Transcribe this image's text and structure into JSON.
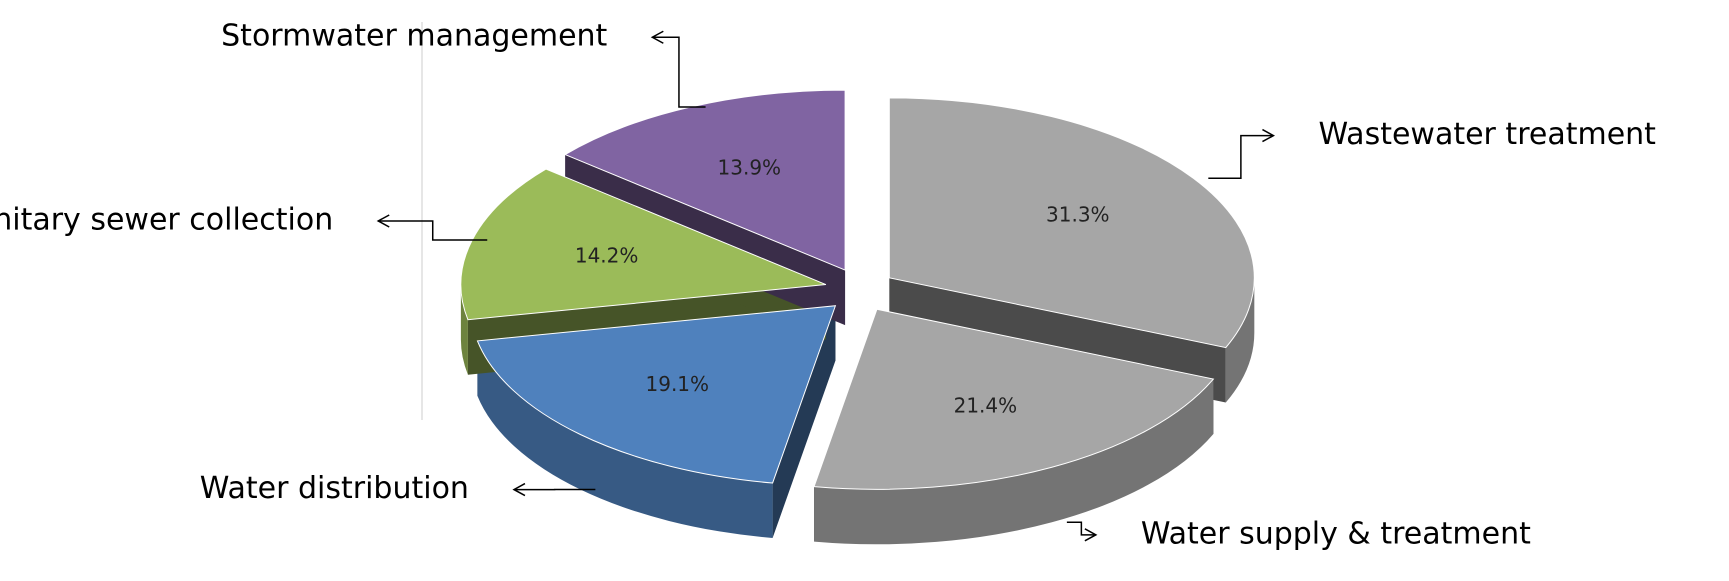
{
  "chart_data": {
    "type": "pie",
    "categories": [
      "Wastewater treatment",
      "Water supply & treatment",
      "Water distribution",
      "Sanitary sewer collection",
      "Stormwater management"
    ],
    "values": [
      31.3,
      21.4,
      19.1,
      14.2,
      13.9
    ],
    "value_labels": [
      "31.3%",
      "21.4%",
      "19.1%",
      "14.2%",
      "13.9%"
    ],
    "colors": [
      "#a6a6a6",
      "#a6a6a6",
      "#4f81bd",
      "#9bbb59",
      "#8064a2"
    ]
  }
}
